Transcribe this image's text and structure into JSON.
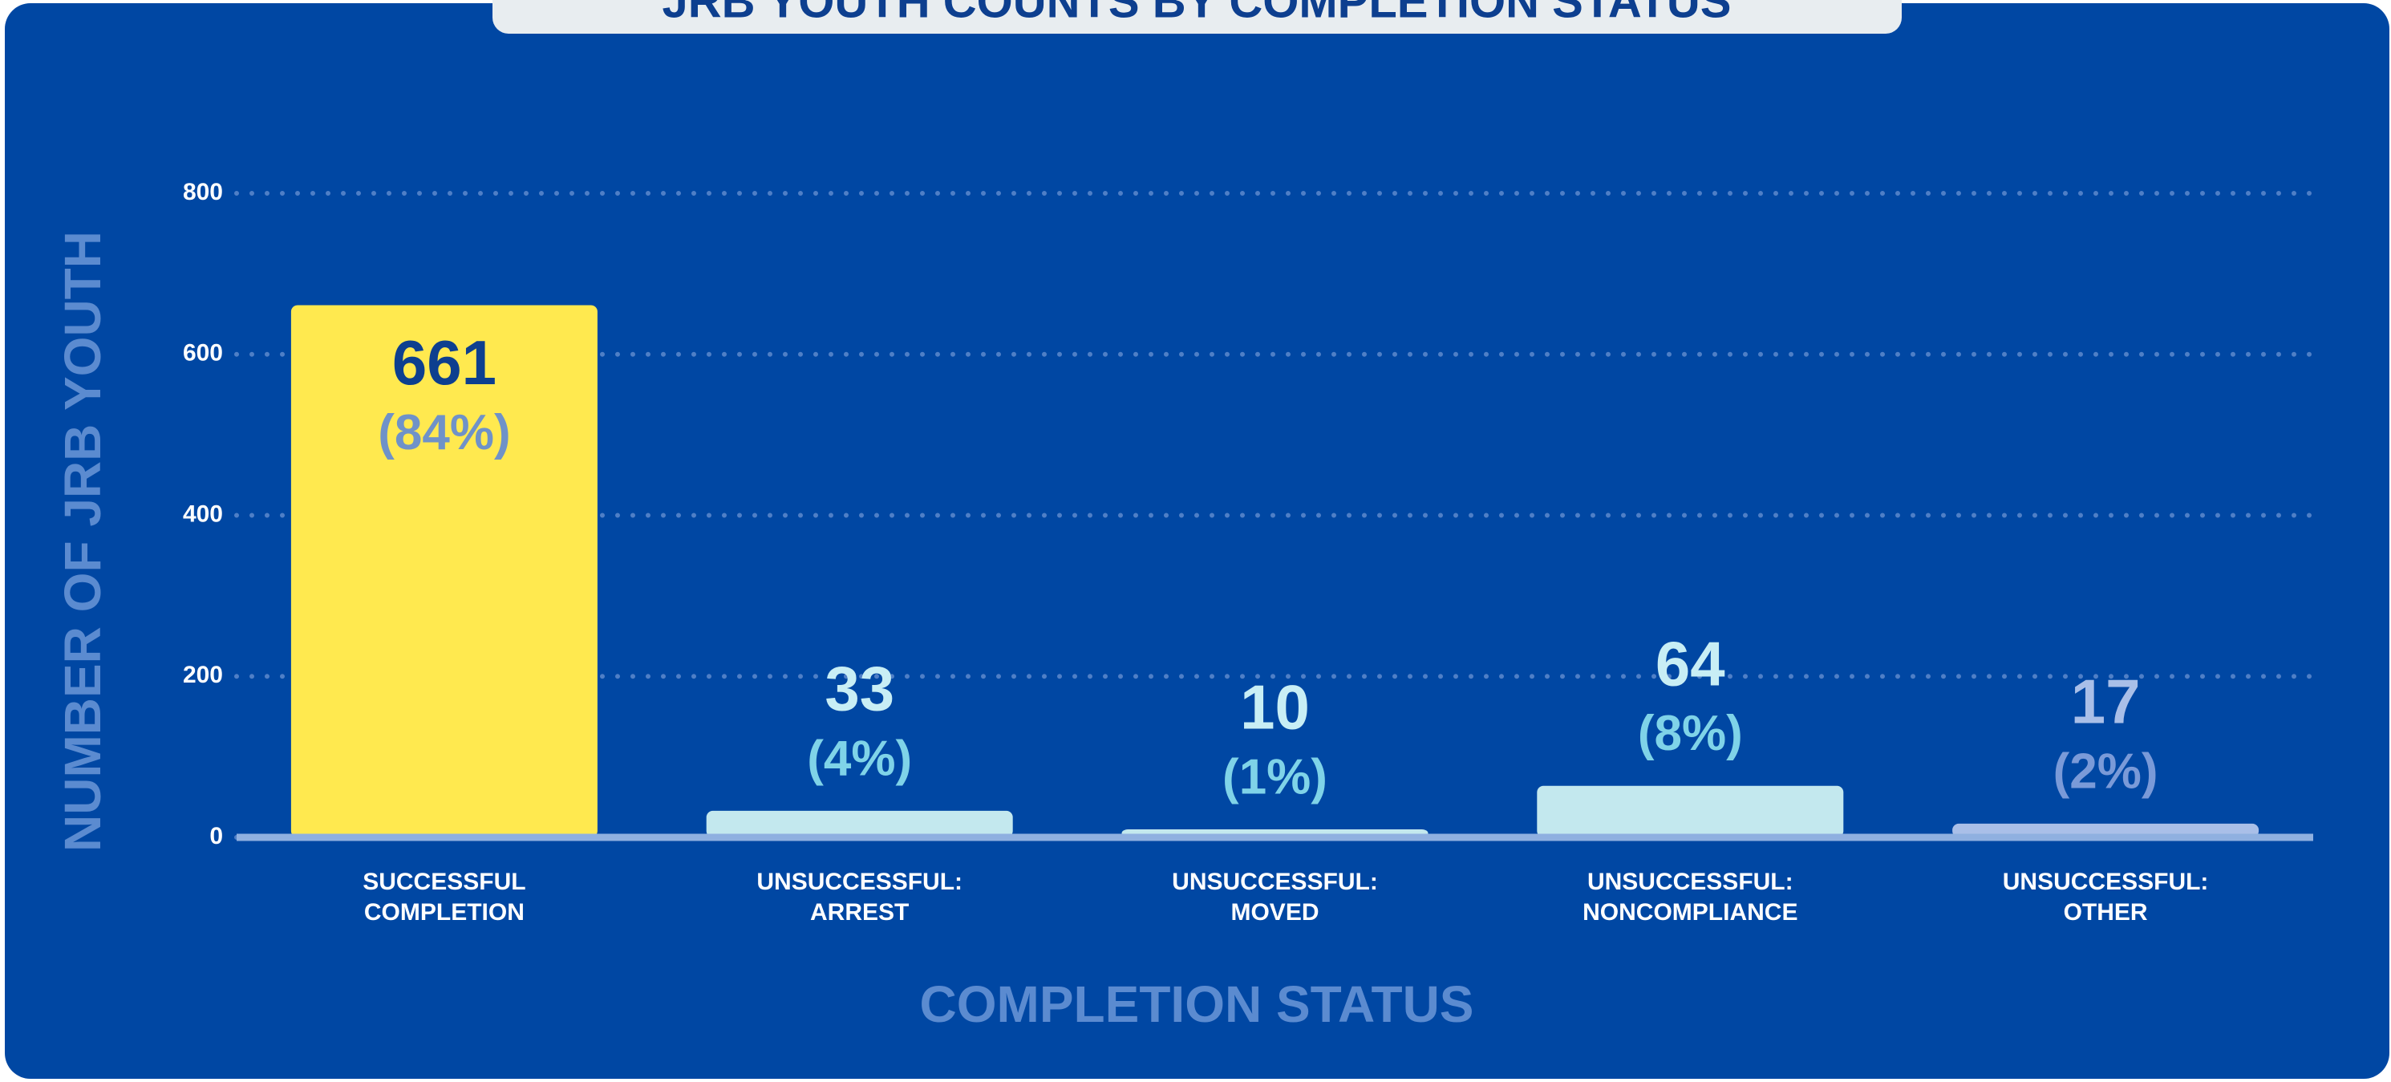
{
  "chart_data": {
    "type": "bar",
    "title": "JRB YOUTH COUNTS BY COMPLETION STATUS",
    "x_label": "COMPLETION STATUS",
    "y_label": "NUMBER OF JRB YOUTH",
    "categories": [
      "SUCCESSFUL COMPLETION",
      "UNSUCCESSFUL: ARREST",
      "UNSUCCESSFUL: MOVED",
      "UNSUCCESSFUL: NONCOMPLIANCE",
      "UNSUCCESSFUL: OTHER"
    ],
    "values": [
      661,
      33,
      10,
      64,
      17
    ],
    "percentages": [
      84,
      4,
      1,
      8,
      2
    ],
    "percentage_labels": [
      "(84%)",
      "(4%)",
      "(1%)",
      "(8%)",
      "(2%)"
    ],
    "colors": [
      "#ffe94f",
      "#c3e8ee",
      "#c3e8ee",
      "#c3e8ee",
      "#a9bfe8"
    ],
    "ylim": [
      0,
      800
    ],
    "yticks": [
      0,
      200,
      400,
      600,
      800
    ],
    "grid": true
  }
}
